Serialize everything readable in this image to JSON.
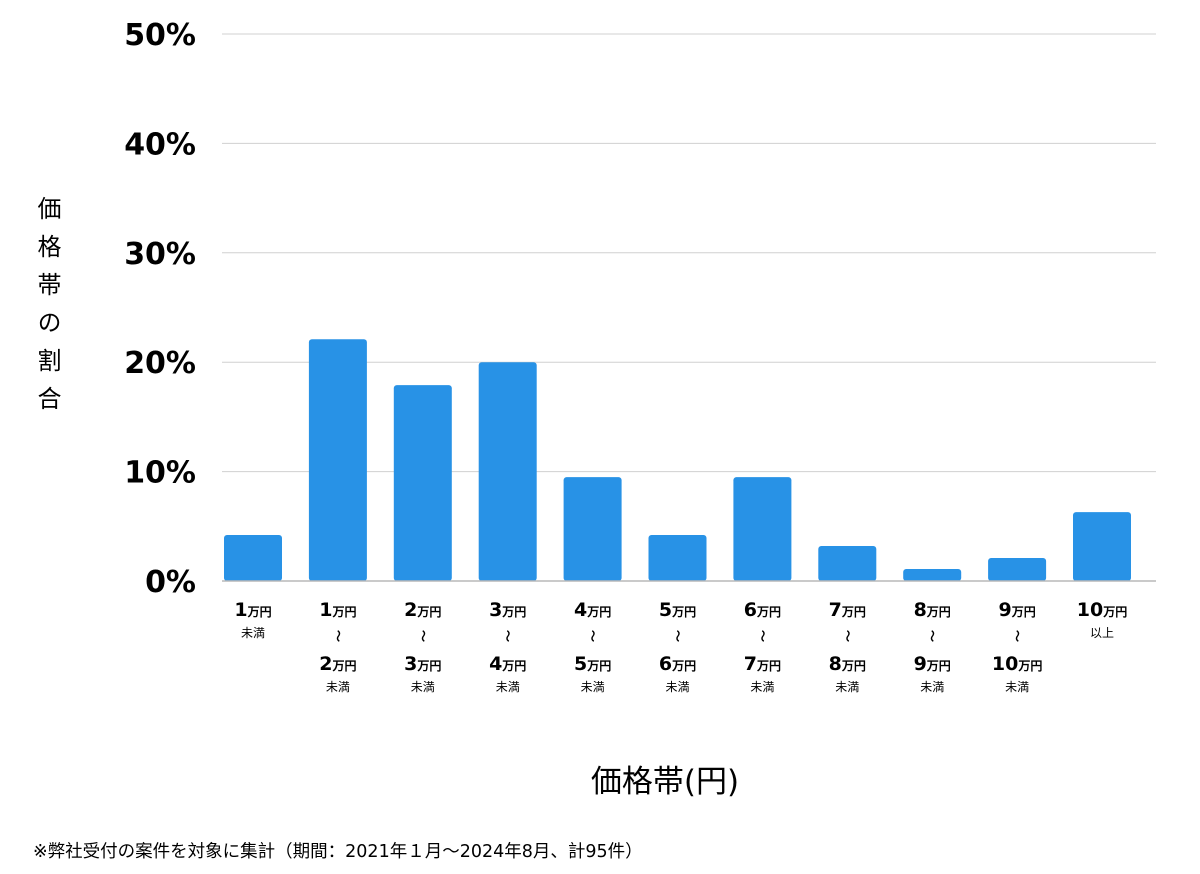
{
  "chart_data": {
    "type": "bar",
    "title": "",
    "xlabel": "価格帯(円)",
    "ylabel": "価格帯の割合",
    "ylim": [
      0,
      50
    ],
    "yticks": [
      "0%",
      "10%",
      "20%",
      "30%",
      "40%",
      "50%"
    ],
    "ytick_values": [
      0,
      10,
      20,
      30,
      40,
      50
    ],
    "grid": true,
    "bar_color": "#2892e6",
    "categories": [
      {
        "label": "1万円未満",
        "lines": [
          {
            "num": "1",
            "unit": "万円"
          }
        ],
        "suffix": "未満"
      },
      {
        "label": "1万円〜2万円未満",
        "lines": [
          {
            "num": "1",
            "unit": "万円"
          },
          {
            "num": "2",
            "unit": "万円"
          }
        ],
        "suffix": "未満"
      },
      {
        "label": "2万円〜3万円未満",
        "lines": [
          {
            "num": "2",
            "unit": "万円"
          },
          {
            "num": "3",
            "unit": "万円"
          }
        ],
        "suffix": "未満"
      },
      {
        "label": "3万円〜4万円未満",
        "lines": [
          {
            "num": "3",
            "unit": "万円"
          },
          {
            "num": "4",
            "unit": "万円"
          }
        ],
        "suffix": "未満"
      },
      {
        "label": "4万円〜5万円未満",
        "lines": [
          {
            "num": "4",
            "unit": "万円"
          },
          {
            "num": "5",
            "unit": "万円"
          }
        ],
        "suffix": "未満"
      },
      {
        "label": "5万円〜6万円未満",
        "lines": [
          {
            "num": "5",
            "unit": "万円"
          },
          {
            "num": "6",
            "unit": "万円"
          }
        ],
        "suffix": "未満"
      },
      {
        "label": "6万円〜7万円未満",
        "lines": [
          {
            "num": "6",
            "unit": "万円"
          },
          {
            "num": "7",
            "unit": "万円"
          }
        ],
        "suffix": "未満"
      },
      {
        "label": "7万円〜8万円未満",
        "lines": [
          {
            "num": "7",
            "unit": "万円"
          },
          {
            "num": "8",
            "unit": "万円"
          }
        ],
        "suffix": "未満"
      },
      {
        "label": "8万円〜9万円未満",
        "lines": [
          {
            "num": "8",
            "unit": "万円"
          },
          {
            "num": "9",
            "unit": "万円"
          }
        ],
        "suffix": "未満"
      },
      {
        "label": "9万円〜10万円未満",
        "lines": [
          {
            "num": "9",
            "unit": "万円"
          },
          {
            "num": "10",
            "unit": "万円"
          }
        ],
        "suffix": "未満"
      },
      {
        "label": "10万円以上",
        "lines": [
          {
            "num": "10",
            "unit": "万円"
          }
        ],
        "suffix": "以上"
      }
    ],
    "range_marker": "〜",
    "values": [
      4.2,
      22.1,
      17.9,
      20.0,
      9.5,
      4.2,
      9.5,
      3.2,
      1.1,
      2.1,
      6.3
    ]
  },
  "footnote": "※弊社受付の案件を対象に集計（期間：2021年１月〜2024年8月、計95件）"
}
